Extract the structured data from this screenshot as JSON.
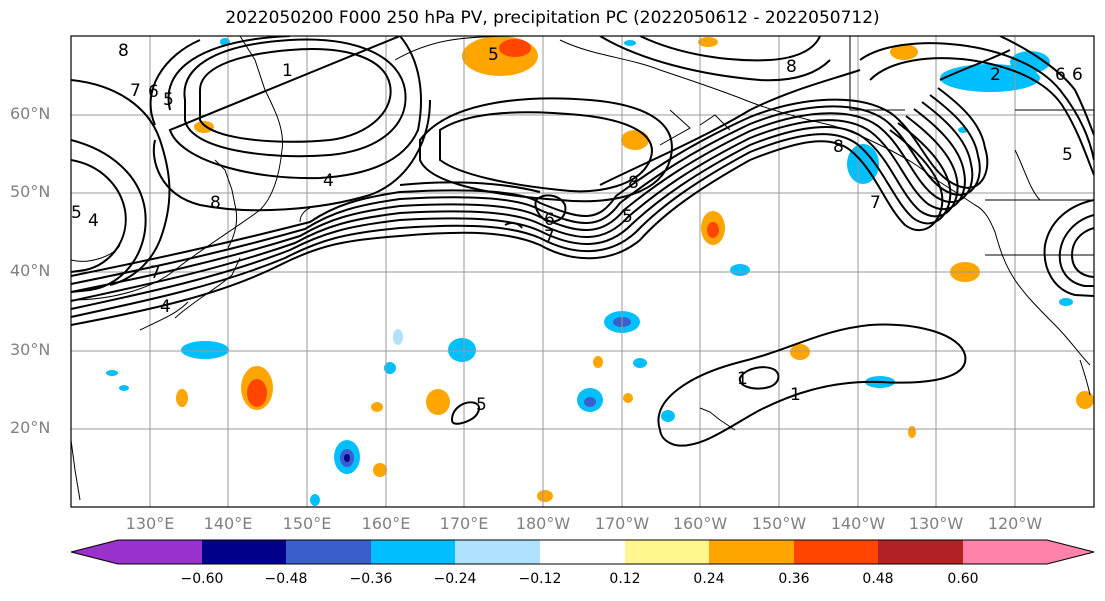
{
  "title": "2022050200 F000 250 hPa PV, precipitation PC (2022050612 - 2022050712)",
  "lat_labels": [
    "60°N",
    "50°N",
    "40°N",
    "30°N",
    "20°N"
  ],
  "lon_labels": [
    "130°E",
    "140°E",
    "150°E",
    "160°E",
    "170°E",
    "180°W",
    "170°W",
    "160°W",
    "150°W",
    "140°W",
    "130°W",
    "120°W"
  ],
  "colorbar": {
    "ticks": [
      "−0.60",
      "−0.48",
      "−0.36",
      "−0.24",
      "−0.12",
      "0.12",
      "0.24",
      "0.36",
      "0.48",
      "0.60"
    ],
    "colors": [
      "#9932cc",
      "#00008b",
      "#3a5fcd",
      "#00bfff",
      "#b0e2ff",
      "#ffffff",
      "#fff68f",
      "#ffa500",
      "#ff4500",
      "#b22222",
      "#ff82ab"
    ]
  },
  "contour_labels": [
    "8",
    "7",
    "6",
    "5",
    "1",
    "4",
    "5",
    "8",
    "4",
    "7",
    "4",
    "5",
    "6",
    "7",
    "5",
    "8",
    "8",
    "2",
    "7",
    "1",
    "1",
    "5",
    "6",
    "6",
    "8",
    "5"
  ]
}
